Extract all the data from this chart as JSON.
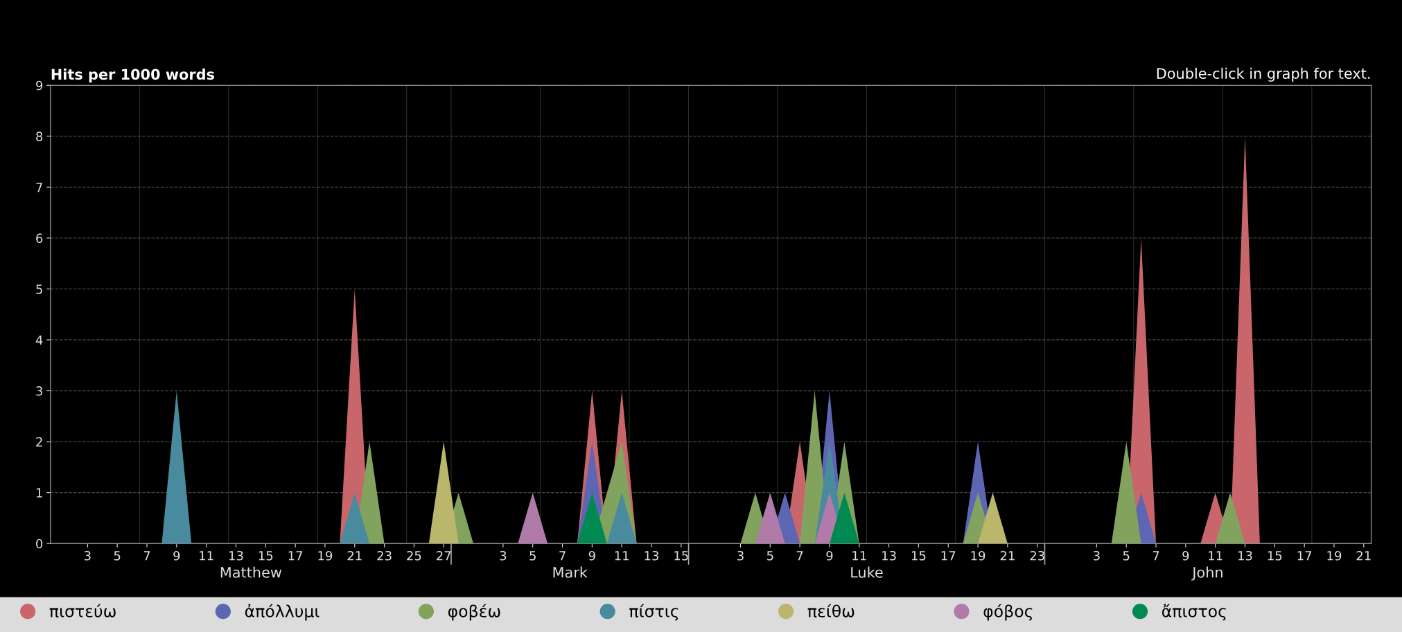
{
  "chart_data": {
    "type": "area",
    "title": "Hits per 1000 words",
    "annotations": [
      "Double-click in graph for text.",
      "Matthew",
      "Mark",
      "Luke",
      "John"
    ],
    "categories": [
      null,
      null,
      "3",
      null,
      "5",
      null,
      "7",
      null,
      "9",
      null,
      "11",
      null,
      "13",
      null,
      "15",
      null,
      "17",
      null,
      "19",
      null,
      "21",
      null,
      "23",
      null,
      "25",
      null,
      "27",
      null,
      null,
      null,
      "3",
      null,
      "5",
      null,
      "7",
      null,
      "9",
      null,
      "11",
      null,
      "13",
      null,
      "15",
      null,
      null,
      null,
      "3",
      null,
      "5",
      null,
      "7",
      null,
      "9",
      null,
      "11",
      null,
      "13",
      null,
      "15",
      null,
      "17",
      null,
      "19",
      null,
      "21",
      null,
      "23",
      null,
      null,
      null,
      "3",
      null,
      "5",
      null,
      "7",
      null,
      "9",
      null,
      "11",
      null,
      "13",
      null,
      "15",
      null,
      "17",
      null,
      "19",
      null,
      "21"
    ],
    "series": [
      {
        "name": "πιστεύω",
        "color": "#c9666b",
        "values": [
          null,
          null,
          null,
          null,
          null,
          null,
          null,
          null,
          null,
          null,
          null,
          null,
          null,
          null,
          null,
          null,
          null,
          null,
          null,
          0,
          5,
          0,
          0,
          0,
          0,
          0,
          0,
          0,
          0,
          0,
          0,
          0,
          0,
          0,
          0,
          0,
          3,
          0,
          3,
          0,
          0,
          0,
          0,
          0,
          0,
          0,
          0,
          0,
          0,
          0,
          2,
          0,
          0,
          0,
          0,
          0,
          0,
          0,
          0,
          0,
          0,
          0,
          0,
          0,
          0,
          0,
          0,
          0,
          0,
          0,
          0,
          0,
          0,
          6,
          0,
          0,
          0,
          0,
          1,
          0,
          8,
          0,
          null,
          null,
          null,
          null,
          null,
          null,
          null
        ]
      },
      {
        "name": "ἀπόλλυμι",
        "color": "#5c66b3",
        "values": [
          null,
          null,
          null,
          null,
          null,
          null,
          null,
          null,
          null,
          null,
          null,
          null,
          null,
          null,
          null,
          null,
          null,
          null,
          null,
          null,
          null,
          null,
          null,
          null,
          null,
          null,
          null,
          null,
          null,
          null,
          null,
          null,
          null,
          null,
          null,
          0,
          2,
          0,
          0,
          0,
          0,
          0,
          0,
          0,
          0,
          0,
          0,
          0,
          0,
          1,
          0,
          0,
          3,
          0,
          0,
          0,
          0,
          0,
          0,
          0,
          0,
          0,
          2,
          0,
          0,
          0,
          0,
          0,
          0,
          0,
          0,
          0,
          0,
          1,
          0,
          null,
          null,
          null,
          null,
          null,
          null,
          null,
          null,
          null,
          null,
          null,
          null,
          null,
          null
        ]
      },
      {
        "name": "φοβέω",
        "color": "#82a35e",
        "values": [
          null,
          null,
          null,
          null,
          null,
          null,
          null,
          null,
          null,
          null,
          null,
          null,
          null,
          null,
          null,
          null,
          null,
          null,
          null,
          null,
          0,
          2,
          0,
          0,
          0,
          0,
          0,
          1,
          0,
          0,
          0,
          0,
          0,
          0,
          0,
          0,
          0,
          1,
          2,
          0,
          0,
          0,
          0,
          0,
          0,
          0,
          0,
          1,
          0,
          0,
          0,
          3,
          0,
          2,
          0,
          0,
          0,
          0,
          0,
          0,
          0,
          0,
          1,
          0,
          0,
          0,
          0,
          0,
          0,
          0,
          0,
          0,
          2,
          0,
          0,
          0,
          0,
          0,
          0,
          1,
          0,
          null,
          null,
          null,
          null,
          null,
          null,
          null,
          null
        ]
      },
      {
        "name": "πίστις",
        "color": "#4a8a9e",
        "values": [
          null,
          null,
          null,
          null,
          null,
          null,
          null,
          0,
          3,
          0,
          0,
          0,
          0,
          0,
          0,
          0,
          0,
          0,
          0,
          0,
          1,
          0,
          0,
          0,
          0,
          0,
          0,
          0,
          0,
          0,
          0,
          0,
          0,
          0,
          0,
          0,
          0,
          0,
          1,
          0,
          0,
          0,
          0,
          0,
          0,
          0,
          0,
          0,
          0,
          0,
          0,
          0,
          2,
          0,
          null,
          null,
          null,
          null,
          null,
          null,
          null,
          null,
          null,
          null,
          null,
          null,
          null,
          null,
          null,
          null,
          null,
          null,
          null,
          null,
          null,
          null,
          null,
          null,
          null,
          null,
          null,
          null,
          null,
          null,
          null,
          null,
          null,
          null,
          null
        ]
      },
      {
        "name": "πείθω",
        "color": "#bab66c",
        "values": [
          null,
          null,
          null,
          null,
          null,
          null,
          null,
          null,
          null,
          null,
          null,
          null,
          null,
          null,
          null,
          null,
          null,
          null,
          null,
          null,
          null,
          null,
          null,
          null,
          null,
          0,
          2,
          0,
          0,
          0,
          0,
          0,
          0,
          0,
          0,
          0,
          0,
          0,
          0,
          0,
          0,
          0,
          0,
          0,
          0,
          0,
          0,
          0,
          0,
          0,
          0,
          0,
          0,
          0,
          0,
          0,
          0,
          0,
          0,
          0,
          0,
          0,
          0,
          1,
          0,
          null,
          null,
          null,
          null,
          null,
          null,
          null,
          null,
          null,
          null,
          null,
          null,
          null,
          null,
          null,
          null,
          null,
          null,
          null,
          null,
          null,
          null,
          null,
          null
        ]
      },
      {
        "name": "φόβος",
        "color": "#b07ba9",
        "values": [
          null,
          null,
          null,
          null,
          null,
          null,
          null,
          null,
          null,
          null,
          null,
          null,
          null,
          null,
          null,
          null,
          null,
          null,
          null,
          null,
          null,
          null,
          null,
          null,
          null,
          null,
          null,
          null,
          null,
          null,
          null,
          0,
          1,
          0,
          0,
          0,
          0,
          0,
          0,
          0,
          0,
          0,
          0,
          0,
          0,
          0,
          0,
          0,
          1,
          0,
          0,
          0,
          1,
          0,
          null,
          null,
          null,
          null,
          null,
          null,
          null,
          null,
          null,
          null,
          null,
          null,
          null,
          null,
          null,
          null,
          null,
          null,
          null,
          null,
          null,
          null,
          null,
          null,
          null,
          null,
          null,
          null,
          null,
          null,
          null,
          null,
          null,
          null,
          null
        ]
      },
      {
        "name": "ἄπιστος",
        "color": "#008a52",
        "values": [
          null,
          null,
          null,
          null,
          null,
          null,
          null,
          null,
          null,
          null,
          null,
          null,
          null,
          null,
          null,
          null,
          null,
          null,
          null,
          null,
          null,
          null,
          null,
          null,
          null,
          null,
          null,
          null,
          null,
          null,
          null,
          null,
          null,
          null,
          null,
          0,
          1,
          0,
          0,
          0,
          0,
          0,
          0,
          0,
          0,
          0,
          0,
          0,
          0,
          0,
          0,
          0,
          0,
          1,
          0,
          null,
          null,
          null,
          null,
          null,
          null,
          null,
          null,
          null,
          null,
          null,
          null,
          null,
          null,
          null,
          null,
          null,
          null,
          null,
          null,
          null,
          null,
          null,
          null,
          null,
          null,
          null,
          null,
          null,
          null,
          null,
          null,
          null,
          null
        ]
      }
    ],
    "ylim": [
      0,
      9
    ],
    "yticks": [
      0,
      1,
      2,
      3,
      4,
      5,
      6,
      7,
      8,
      9
    ],
    "grid": true,
    "legend": "bottom"
  }
}
